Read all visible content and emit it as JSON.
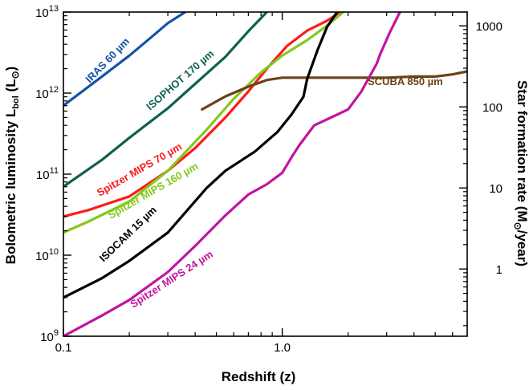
{
  "chart_data": {
    "type": "line",
    "x_scale": "log",
    "y_scale": "log",
    "xlim": [
      0.1,
      7.0
    ],
    "ylim": [
      1000000000.0,
      10000000000000.0
    ],
    "y2lim": [
      0.148,
      1480
    ],
    "xlabel": "Redshift (z)",
    "ylabel": {
      "main": "Bolometric luminosity L",
      "sub": "bol",
      "unit_open": " (L",
      "unit_sym": "⊙",
      "unit_close": ")"
    },
    "y2label": {
      "main": "Star formation rate (M",
      "unit_sym": "⊙",
      "unit_close": "/year)"
    },
    "x_ticks": [
      {
        "value": 0.1,
        "label": "0.1"
      },
      {
        "value": 1.0,
        "label": "1.0"
      }
    ],
    "y_ticks": [
      {
        "value": 1000000000.0,
        "base": "10",
        "exp": "9"
      },
      {
        "value": 10000000000.0,
        "base": "10",
        "exp": "10"
      },
      {
        "value": 100000000000.0,
        "base": "10",
        "exp": "11"
      },
      {
        "value": 1000000000000.0,
        "base": "10",
        "exp": "12"
      },
      {
        "value": 10000000000000.0,
        "base": "10",
        "exp": "13"
      }
    ],
    "y2_ticks": [
      {
        "value": 1,
        "label": "1"
      },
      {
        "value": 10,
        "label": "10"
      },
      {
        "value": 100,
        "label": "100"
      },
      {
        "value": 1000,
        "label": "1000"
      }
    ],
    "series": [
      {
        "name": "IRAS 60 µm",
        "color": "#1452a8",
        "x": [
          0.1,
          0.15,
          0.2,
          0.25,
          0.3,
          0.36
        ],
        "y": [
          700000000000.0,
          1600000000000.0,
          2900000000000.0,
          4800000000000.0,
          7300000000000.0,
          10000000000000.0
        ]
      },
      {
        "name": "ISOPHOT 170 µm",
        "color": "#0e6050",
        "x": [
          0.1,
          0.15,
          0.2,
          0.3,
          0.4,
          0.55,
          0.7,
          0.85
        ],
        "y": [
          70000000000.0,
          150000000000.0,
          280000000000.0,
          650000000000.0,
          1300000000000.0,
          2800000000000.0,
          5800000000000.0,
          10000000000000.0
        ]
      },
      {
        "name": "Spitzer MIPS 70 µm",
        "color": "#ff1a1a",
        "x": [
          0.1,
          0.13,
          0.2,
          0.3,
          0.4,
          0.55,
          0.7,
          0.85,
          1.05,
          1.3,
          1.6,
          1.85
        ],
        "y": [
          30000000000.0,
          36000000000.0,
          53000000000.0,
          110000000000.0,
          210000000000.0,
          500000000000.0,
          1050000000000.0,
          2000000000000.0,
          3800000000000.0,
          5900000000000.0,
          7800000000000.0,
          10000000000000.0
        ]
      },
      {
        "name": "Spitzer MIPS 160 µm",
        "color": "#84c81c",
        "x": [
          0.1,
          0.13,
          0.2,
          0.3,
          0.45,
          0.6,
          0.8,
          1.0,
          1.3,
          1.6,
          1.9
        ],
        "y": [
          19000000000.0,
          26000000000.0,
          46000000000.0,
          110000000000.0,
          350000000000.0,
          850000000000.0,
          1800000000000.0,
          2900000000000.0,
          4500000000000.0,
          6800000000000.0,
          10000000000000.0
        ]
      },
      {
        "name": "SCUBA 850 µm",
        "color": "#6b4218",
        "x": [
          0.43,
          0.55,
          0.7,
          0.85,
          1.0,
          1.3,
          2.0,
          3.0,
          4.0,
          5.0,
          6.0,
          7.0
        ],
        "y": [
          630000000000.0,
          910000000000.0,
          1200000000000.0,
          1450000000000.0,
          1550000000000.0,
          1550000000000.0,
          1550000000000.0,
          1550000000000.0,
          1600000000000.0,
          1600000000000.0,
          1700000000000.0,
          1850000000000.0
        ]
      },
      {
        "name": "ISOCAM 15 µm",
        "color": "#000000",
        "x": [
          0.1,
          0.15,
          0.2,
          0.3,
          0.45,
          0.55,
          0.75,
          0.95,
          1.1,
          1.25,
          1.3,
          1.45,
          1.6,
          1.78
        ],
        "y": [
          3000000000.0,
          5200000000.0,
          8500000000.0,
          19000000000.0,
          67000000000.0,
          110000000000.0,
          190000000000.0,
          330000000000.0,
          540000000000.0,
          900000000000.0,
          1500000000000.0,
          3400000000000.0,
          6500000000000.0,
          10000000000000.0
        ]
      },
      {
        "name": "Spitzer MIPS 24 µm",
        "color": "#c214a0",
        "x": [
          0.1,
          0.15,
          0.2,
          0.3,
          0.4,
          0.55,
          0.7,
          0.85,
          1.0,
          1.1,
          1.2,
          1.4,
          1.7,
          2.0,
          2.3,
          2.7,
          2.8,
          3.1,
          3.45
        ],
        "y": [
          1000000000.0,
          1800000000.0,
          2800000000.0,
          6200000000.0,
          13000000000.0,
          31000000000.0,
          56000000000.0,
          75000000000.0,
          104000000000.0,
          160000000000.0,
          230000000000.0,
          400000000000.0,
          510000000000.0,
          630000000000.0,
          1050000000000.0,
          2300000000000.0,
          3000000000000.0,
          5600000000000.0,
          10000000000000.0
        ]
      }
    ]
  }
}
